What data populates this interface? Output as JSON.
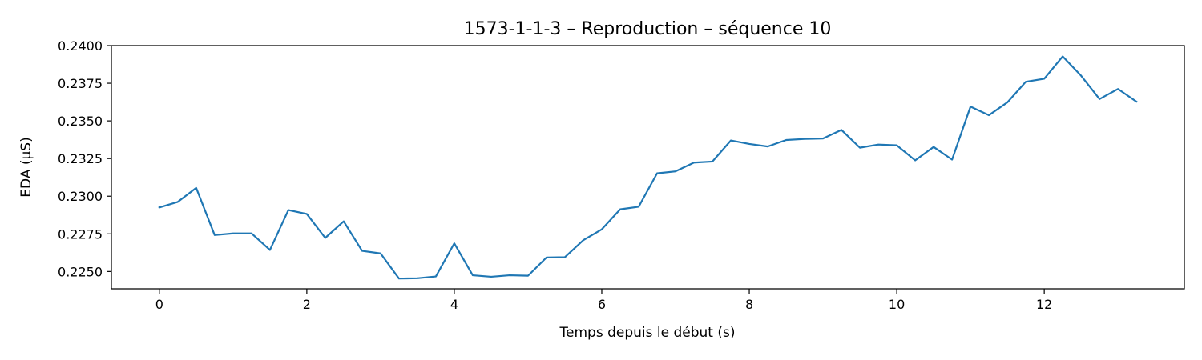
{
  "chart_data": {
    "type": "line",
    "title": "1573-1-1-3 – Reproduction – séquence 10",
    "xlabel": "Temps depuis le début (s)",
    "ylabel": "EDA (µS)",
    "xlim": [
      -0.65,
      13.9
    ],
    "ylim": [
      0.22385,
      0.24
    ],
    "x_ticks": [
      0,
      2,
      4,
      6,
      8,
      10,
      12
    ],
    "y_ticks": [
      0.225,
      0.2275,
      0.23,
      0.2325,
      0.235,
      0.2375,
      0.24
    ],
    "x_tick_labels": [
      "0",
      "2",
      "4",
      "6",
      "8",
      "10",
      "12"
    ],
    "y_tick_labels": [
      "0.2250",
      "0.2275",
      "0.2300",
      "0.2325",
      "0.2350",
      "0.2375",
      "0.2400"
    ],
    "grid": false,
    "line_color": "#1f77b4",
    "series": [
      {
        "x": [
          0,
          0.25,
          0.5,
          0.75,
          1.0,
          1.25,
          1.5,
          1.75,
          2.0,
          2.25,
          2.5,
          2.75,
          3.0,
          3.25,
          3.5,
          3.75,
          4.0,
          4.25,
          4.5,
          4.75,
          5.0,
          5.25,
          5.5,
          5.75,
          6.0,
          6.25,
          6.5,
          6.75,
          7.0,
          7.25,
          7.5,
          7.75,
          8.0,
          8.25,
          8.5,
          8.75,
          9.0,
          9.25,
          9.5,
          9.75,
          10.0,
          10.25,
          10.5,
          10.75,
          11.0,
          11.25,
          11.5,
          11.75,
          12.0,
          12.25,
          12.5,
          12.75,
          13.0,
          13.25
        ],
        "values": [
          0.22925,
          0.22962,
          0.23055,
          0.22742,
          0.22753,
          0.22753,
          0.22643,
          0.22908,
          0.22882,
          0.22723,
          0.22833,
          0.22637,
          0.2262,
          0.22453,
          0.22455,
          0.22467,
          0.22687,
          0.22475,
          0.22465,
          0.22475,
          0.22472,
          0.22593,
          0.22595,
          0.22708,
          0.2278,
          0.22913,
          0.2293,
          0.23152,
          0.23165,
          0.23223,
          0.2323,
          0.2337,
          0.23347,
          0.2333,
          0.23373,
          0.2338,
          0.23383,
          0.2344,
          0.23322,
          0.23343,
          0.23338,
          0.23238,
          0.23327,
          0.23243,
          0.23595,
          0.23538,
          0.23623,
          0.2376,
          0.2378,
          0.23928,
          0.238,
          0.23645,
          0.23712,
          0.23628
        ]
      }
    ]
  }
}
